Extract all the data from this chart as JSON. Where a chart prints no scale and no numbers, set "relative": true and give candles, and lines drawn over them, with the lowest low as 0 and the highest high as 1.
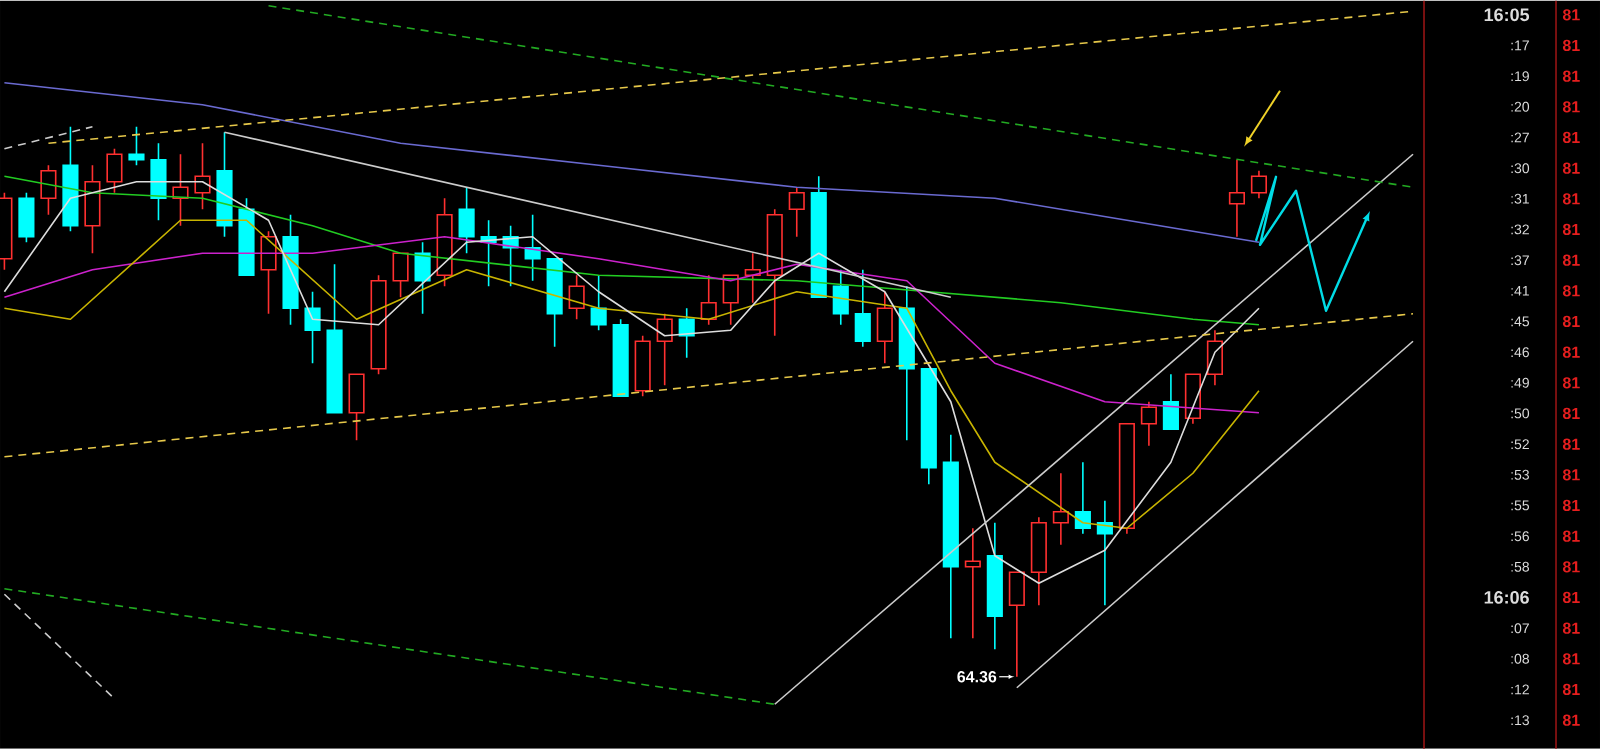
{
  "chart_data": {
    "type": "candlestick",
    "relative": true,
    "categories": [
      null,
      null,
      null,
      null,
      null,
      null,
      null,
      null,
      null,
      null,
      null,
      null,
      null,
      null,
      null,
      null,
      null,
      null,
      null,
      null,
      null,
      null,
      null,
      null,
      null,
      null,
      null,
      null,
      null,
      null,
      null,
      null,
      null,
      null,
      null,
      null,
      null,
      null,
      null,
      null,
      null,
      null,
      null,
      null,
      null,
      null,
      null,
      null,
      null,
      null,
      null,
      null,
      null,
      null,
      null,
      null,
      null,
      null,
      null,
      null,
      null,
      null,
      null,
      null,
      null
    ],
    "ohlc": [
      [
        0.76,
        0.88,
        0.74,
        0.87
      ],
      [
        0.87,
        0.88,
        0.79,
        0.8
      ],
      [
        0.87,
        0.93,
        0.84,
        0.92
      ],
      [
        0.93,
        1.0,
        0.81,
        0.82
      ],
      [
        0.82,
        0.93,
        0.77,
        0.9
      ],
      [
        0.9,
        0.96,
        0.88,
        0.95
      ],
      [
        0.95,
        1.0,
        0.93,
        0.94
      ],
      [
        0.94,
        0.97,
        0.83,
        0.87
      ],
      [
        0.87,
        0.95,
        0.82,
        0.89
      ],
      [
        0.88,
        0.97,
        0.85,
        0.91
      ],
      [
        0.92,
        0.99,
        0.8,
        0.82
      ],
      [
        0.85,
        0.87,
        0.73,
        0.73
      ],
      [
        0.74,
        0.81,
        0.66,
        0.8
      ],
      [
        0.8,
        0.84,
        0.64,
        0.67
      ],
      [
        0.67,
        0.7,
        0.57,
        0.63
      ],
      [
        0.63,
        0.75,
        0.48,
        0.48
      ],
      [
        0.48,
        0.55,
        0.43,
        0.55
      ],
      [
        0.56,
        0.73,
        0.55,
        0.72
      ],
      [
        0.72,
        0.77,
        0.69,
        0.77
      ],
      [
        0.77,
        0.79,
        0.66,
        0.72
      ],
      [
        0.73,
        0.87,
        0.71,
        0.84
      ],
      [
        0.85,
        0.89,
        0.77,
        0.8
      ],
      [
        0.8,
        0.83,
        0.71,
        0.79
      ],
      [
        0.8,
        0.82,
        0.71,
        0.78
      ],
      [
        0.78,
        0.84,
        0.72,
        0.76
      ],
      [
        0.76,
        0.76,
        0.6,
        0.66
      ],
      [
        0.67,
        0.73,
        0.65,
        0.71
      ],
      [
        0.67,
        0.73,
        0.63,
        0.64
      ],
      [
        0.64,
        0.65,
        0.51,
        0.51
      ],
      [
        0.52,
        0.62,
        0.51,
        0.61
      ],
      [
        0.61,
        0.66,
        0.53,
        0.65
      ],
      [
        0.65,
        0.67,
        0.58,
        0.62
      ],
      [
        0.65,
        0.73,
        0.64,
        0.68
      ],
      [
        0.68,
        0.73,
        0.64,
        0.73
      ],
      [
        0.73,
        0.77,
        0.68,
        0.74
      ],
      [
        0.73,
        0.85,
        0.62,
        0.84
      ],
      [
        0.85,
        0.89,
        0.8,
        0.88
      ],
      [
        0.88,
        0.91,
        0.69,
        0.69
      ],
      [
        0.71,
        0.74,
        0.64,
        0.66
      ],
      [
        0.66,
        0.74,
        0.6,
        0.61
      ],
      [
        0.61,
        0.7,
        0.57,
        0.67
      ],
      [
        0.67,
        0.71,
        0.43,
        0.56
      ],
      [
        0.56,
        0.56,
        0.35,
        0.38
      ],
      [
        0.39,
        0.44,
        0.07,
        0.2
      ],
      [
        0.2,
        0.27,
        0.07,
        0.21
      ],
      [
        0.22,
        0.28,
        0.05,
        0.11
      ],
      [
        0.13,
        0.19,
        0,
        0.19
      ],
      [
        0.19,
        0.29,
        0.13,
        0.28
      ],
      [
        0.28,
        0.37,
        0.24,
        0.3
      ],
      [
        0.3,
        0.39,
        0.26,
        0.27
      ],
      [
        0.28,
        0.32,
        0.13,
        0.26
      ],
      [
        0.27,
        0.46,
        0.26,
        0.46
      ],
      [
        0.46,
        0.5,
        0.42,
        0.49
      ],
      [
        0.5,
        0.55,
        0.45,
        0.45
      ],
      [
        0.47,
        0.55,
        0.46,
        0.55
      ],
      [
        0.55,
        0.63,
        0.53,
        0.61
      ],
      [
        0.86,
        0.94,
        0.8,
        0.88
      ],
      [
        0.88,
        0.92,
        0.87,
        0.91
      ],
      null,
      null,
      null,
      null,
      null,
      null,
      null
    ],
    "colors": [
      "#ff3030",
      "#00ffff",
      "#ff3030",
      "#00ffff",
      "#ff3030",
      "#ff3030",
      "#00ffff",
      "#00ffff",
      "#ff3030",
      "#ff3030",
      "#00ffff",
      "#00ffff",
      "#ff3030",
      "#00ffff",
      "#00ffff",
      "#00ffff",
      "#ff3030",
      "#ff3030",
      "#ff3030",
      "#00ffff",
      "#ff3030",
      "#00ffff",
      "#00ffff",
      "#00ffff",
      "#00ffff",
      "#00ffff",
      "#ff3030",
      "#00ffff",
      "#00ffff",
      "#ff3030",
      "#ff3030",
      "#00ffff",
      "#ff3030",
      "#ff3030",
      "#ff3030",
      "#ff3030",
      "#ff3030",
      "#00ffff",
      "#00ffff",
      "#00ffff",
      "#ff3030",
      "#00ffff",
      "#00ffff",
      "#00ffff",
      "#ff3030",
      "#00ffff",
      "#ff3030",
      "#ff3030",
      "#ff3030",
      "#00ffff",
      "#00ffff",
      "#ff3030",
      "#ff3030",
      "#00ffff",
      "#ff3030",
      "#ff3030",
      "#ff3030",
      "#ff3030",
      null,
      null,
      null,
      null,
      null,
      null,
      null
    ],
    "series": [
      {
        "type": "line",
        "color": "#6a6ad0",
        "line_style": "solid",
        "values": [
          1.08,
          null,
          null,
          null,
          null,
          null,
          null,
          null,
          null,
          1.04,
          null,
          null,
          null,
          null,
          null,
          null,
          null,
          null,
          0.97,
          null,
          null,
          null,
          null,
          null,
          null,
          null,
          null,
          0.93,
          null,
          null,
          null,
          null,
          null,
          null,
          null,
          null,
          0.89,
          null,
          null,
          null,
          null,
          null,
          null,
          null,
          null,
          0.87,
          null,
          null,
          null,
          null,
          null,
          0.83,
          null,
          null,
          null,
          null,
          null,
          0.79,
          null,
          null,
          null,
          null,
          null,
          null,
          null
        ]
      },
      {
        "type": "line",
        "color": "#22cc22",
        "line_style": "solid",
        "values": [
          0.91,
          null,
          null,
          null,
          0.88,
          null,
          null,
          null,
          null,
          0.87,
          null,
          null,
          null,
          null,
          0.82,
          null,
          null,
          null,
          0.77,
          null,
          null,
          null,
          null,
          null,
          null,
          null,
          null,
          0.73,
          null,
          null,
          null,
          null,
          null,
          null,
          null,
          null,
          0.72,
          null,
          null,
          null,
          null,
          null,
          0.7,
          null,
          null,
          null,
          null,
          null,
          0.68,
          null,
          null,
          null,
          null,
          null,
          0.65,
          null,
          null,
          0.64,
          null,
          null,
          null,
          null,
          null,
          null,
          null
        ]
      },
      {
        "type": "line",
        "color": "#cc22cc",
        "line_style": "solid",
        "values": [
          0.69,
          null,
          null,
          null,
          0.74,
          null,
          null,
          null,
          null,
          0.77,
          null,
          null,
          null,
          null,
          0.77,
          null,
          null,
          null,
          null,
          null,
          0.8,
          null,
          null,
          null,
          null,
          null,
          null,
          0.76,
          null,
          null,
          null,
          null,
          null,
          0.72,
          null,
          null,
          0.75,
          null,
          null,
          null,
          null,
          0.72,
          null,
          null,
          null,
          0.57,
          null,
          null,
          null,
          null,
          0.5,
          null,
          null,
          null,
          null,
          null,
          null,
          0.48,
          null,
          null,
          null,
          null,
          null,
          null,
          null
        ]
      },
      {
        "type": "line",
        "color": "#c8b400",
        "line_style": "solid",
        "values": [
          0.67,
          null,
          null,
          0.65,
          null,
          null,
          null,
          null,
          0.83,
          null,
          null,
          0.83,
          null,
          null,
          null,
          null,
          0.65,
          null,
          null,
          null,
          null,
          0.74,
          null,
          null,
          null,
          null,
          null,
          0.67,
          null,
          null,
          null,
          null,
          0.65,
          null,
          null,
          null,
          0.7,
          null,
          null,
          null,
          null,
          0.67,
          null,
          0.52,
          null,
          0.39,
          null,
          null,
          null,
          0.28,
          null,
          0.27,
          null,
          null,
          0.37,
          null,
          null,
          0.52,
          null,
          null,
          null,
          null,
          null,
          null,
          null
        ]
      },
      {
        "type": "line",
        "color": "#dddddd",
        "line_style": "solid",
        "values": [
          0.7,
          null,
          null,
          0.87,
          null,
          null,
          0.9,
          null,
          null,
          0.9,
          null,
          null,
          0.83,
          null,
          0.65,
          null,
          null,
          0.64,
          null,
          null,
          null,
          0.79,
          null,
          null,
          0.8,
          null,
          null,
          0.7,
          null,
          null,
          0.62,
          null,
          null,
          0.63,
          null,
          0.72,
          null,
          0.77,
          null,
          null,
          0.7,
          null,
          null,
          0.5,
          null,
          0.22,
          null,
          0.17,
          null,
          null,
          0.23,
          null,
          null,
          0.39,
          null,
          0.59,
          null,
          0.67,
          null,
          null,
          null,
          null,
          null,
          null,
          null
        ]
      },
      {
        "type": "line",
        "color": "#cccccc",
        "line_style": "solid",
        "values": [
          null,
          null,
          null,
          null,
          null,
          null,
          null,
          null,
          null,
          null,
          0.99,
          null,
          null,
          null,
          null,
          null,
          null,
          null,
          null,
          null,
          null,
          null,
          null,
          null,
          null,
          null,
          null,
          null,
          null,
          null,
          null,
          null,
          null,
          null,
          null,
          null,
          null,
          null,
          null,
          null,
          null,
          null,
          null,
          0.69,
          null,
          null,
          null,
          null,
          null,
          null,
          null,
          null,
          null,
          null,
          null,
          null,
          null,
          null,
          null,
          null,
          null,
          null,
          null,
          null,
          null
        ]
      },
      {
        "type": "line",
        "color": "#cccccc",
        "line_style": "solid",
        "values": [
          null,
          null,
          null,
          null,
          null,
          null,
          null,
          null,
          null,
          null,
          null,
          null,
          null,
          null,
          null,
          null,
          null,
          null,
          null,
          null,
          null,
          null,
          null,
          null,
          null,
          null,
          null,
          null,
          null,
          null,
          null,
          null,
          null,
          null,
          null,
          -0.05,
          null,
          null,
          null,
          null,
          null,
          null,
          null,
          null,
          null,
          null,
          null,
          null,
          null,
          null,
          null,
          null,
          null,
          null,
          null,
          null,
          null,
          null,
          null,
          null,
          null,
          null,
          null,
          null,
          0.95
        ]
      },
      {
        "type": "line",
        "color": "#cccccc",
        "line_style": "solid",
        "values": [
          null,
          null,
          null,
          null,
          null,
          null,
          null,
          null,
          null,
          null,
          null,
          null,
          null,
          null,
          null,
          null,
          null,
          null,
          null,
          null,
          null,
          null,
          null,
          null,
          null,
          null,
          null,
          null,
          null,
          null,
          null,
          null,
          null,
          null,
          null,
          null,
          null,
          null,
          null,
          null,
          null,
          null,
          null,
          null,
          null,
          null,
          -0.02,
          null,
          null,
          null,
          null,
          null,
          null,
          null,
          null,
          null,
          null,
          null,
          null,
          null,
          null,
          null,
          null,
          null,
          0.61
        ]
      },
      {
        "type": "line",
        "color": "#e6c84a",
        "line_style": "dashed",
        "values": [
          0.4,
          null,
          null,
          null,
          null,
          null,
          null,
          null,
          null,
          null,
          null,
          null,
          null,
          null,
          null,
          null,
          null,
          null,
          null,
          null,
          null,
          null,
          null,
          null,
          null,
          null,
          null,
          null,
          null,
          null,
          null,
          null,
          null,
          null,
          null,
          null,
          null,
          null,
          null,
          null,
          null,
          null,
          null,
          null,
          null,
          null,
          null,
          null,
          null,
          null,
          null,
          null,
          null,
          null,
          null,
          null,
          null,
          null,
          null,
          null,
          null,
          null,
          null,
          null,
          0.66
        ]
      },
      {
        "type": "line",
        "color": "#e6c84a",
        "line_style": "dashed",
        "values": [
          null,
          null,
          0.97,
          null,
          null,
          null,
          null,
          null,
          null,
          null,
          null,
          null,
          null,
          null,
          null,
          null,
          null,
          null,
          null,
          null,
          null,
          null,
          null,
          null,
          null,
          null,
          null,
          null,
          null,
          null,
          null,
          null,
          null,
          null,
          null,
          null,
          null,
          null,
          null,
          null,
          null,
          null,
          null,
          null,
          null,
          null,
          null,
          null,
          null,
          null,
          null,
          null,
          null,
          null,
          null,
          null,
          null,
          null,
          null,
          null,
          null,
          null,
          null,
          null,
          1.21
        ]
      },
      {
        "type": "line",
        "color": "#22aa22",
        "line_style": "dashed",
        "values": [
          null,
          null,
          null,
          null,
          null,
          null,
          null,
          null,
          null,
          null,
          null,
          null,
          1.22,
          null,
          null,
          null,
          null,
          null,
          null,
          null,
          null,
          null,
          null,
          null,
          null,
          null,
          null,
          null,
          null,
          null,
          null,
          null,
          null,
          null,
          null,
          null,
          null,
          null,
          null,
          null,
          null,
          null,
          null,
          null,
          null,
          null,
          null,
          null,
          null,
          null,
          null,
          null,
          null,
          null,
          null,
          null,
          null,
          null,
          null,
          null,
          null,
          null,
          null,
          null,
          0.89
        ]
      },
      {
        "type": "line",
        "color": "#22aa22",
        "line_style": "dashed",
        "values": [
          0.16,
          null,
          null,
          null,
          null,
          null,
          null,
          null,
          null,
          null,
          null,
          null,
          null,
          null,
          null,
          null,
          null,
          null,
          null,
          null,
          null,
          null,
          null,
          null,
          null,
          null,
          null,
          null,
          null,
          null,
          null,
          null,
          null,
          null,
          null,
          -0.05,
          null,
          null,
          null,
          null,
          null,
          null,
          null,
          null,
          null,
          null,
          null,
          null,
          null,
          null,
          null,
          null,
          null,
          null,
          null,
          null,
          null,
          null,
          null,
          null,
          null,
          null,
          null,
          null,
          null
        ]
      },
      {
        "type": "line",
        "color": "#cccccc",
        "line_style": "dashed",
        "values": [
          0.15,
          null,
          null,
          null,
          null,
          -0.04,
          null,
          null,
          null,
          null,
          null,
          null,
          null,
          null,
          null,
          null,
          null,
          null,
          null,
          null,
          null,
          null,
          null,
          null,
          null,
          null,
          null,
          null,
          null,
          null,
          null,
          null,
          null,
          null,
          null,
          null,
          null,
          null,
          null,
          null,
          null,
          null,
          null,
          null,
          null,
          null,
          null,
          null,
          null,
          null,
          null,
          null,
          null,
          null,
          null,
          null,
          null,
          null,
          null,
          null,
          null,
          null,
          null,
          null,
          null
        ]
      },
      {
        "type": "line",
        "color": "#cccccc",
        "line_style": "dashed",
        "values": [
          0.96,
          null,
          null,
          null,
          1.0,
          null,
          null,
          null,
          null,
          null,
          null,
          null,
          null,
          null,
          null,
          null,
          null,
          null,
          null,
          null,
          null,
          null,
          null,
          null,
          null,
          null,
          null,
          null,
          null,
          null,
          null,
          null,
          null,
          null,
          null,
          null,
          null,
          null,
          null,
          null,
          null,
          null,
          null,
          null,
          null,
          null,
          null,
          null,
          null,
          null,
          null,
          null,
          null,
          null,
          null,
          null,
          null,
          null,
          null,
          null,
          null,
          null,
          null,
          null,
          null
        ]
      }
    ],
    "annotations": [
      "64.36",
      "16:05",
      ":17",
      ":19",
      ":20",
      ":27",
      ":30",
      ":31",
      ":32",
      ":37",
      ":41",
      ":45",
      ":46",
      ":49",
      ":50",
      ":52",
      ":53",
      ":55",
      ":56",
      ":58",
      "16:06",
      ":07",
      ":08",
      ":12",
      ":13",
      "81",
      "81",
      "81",
      "81",
      "81",
      "81",
      "81",
      "81",
      "81",
      "81",
      "81",
      "81",
      "81",
      "81",
      "81",
      "81",
      "81",
      "81",
      "81",
      "81",
      "81",
      "81",
      "81",
      "81"
    ]
  }
}
